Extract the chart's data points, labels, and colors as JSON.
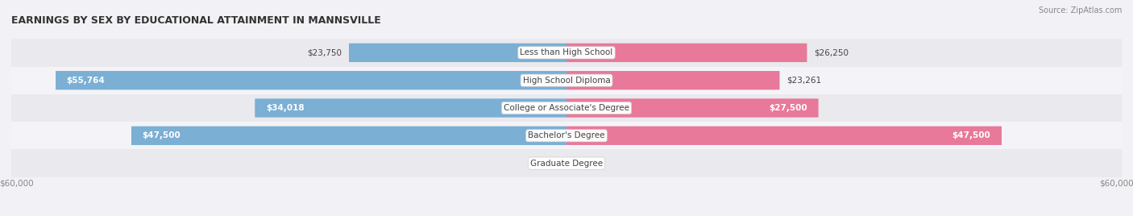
{
  "title": "EARNINGS BY SEX BY EDUCATIONAL ATTAINMENT IN MANNSVILLE",
  "source": "Source: ZipAtlas.com",
  "categories": [
    "Less than High School",
    "High School Diploma",
    "College or Associate's Degree",
    "Bachelor's Degree",
    "Graduate Degree"
  ],
  "male_values": [
    23750,
    55764,
    34018,
    47500,
    0
  ],
  "female_values": [
    26250,
    23261,
    27500,
    47500,
    0
  ],
  "max_val": 60000,
  "male_color": "#7BAFD4",
  "female_color": "#E8799A",
  "male_color_grad": "#A8C8E8",
  "female_color_grad": "#F0AABB",
  "row_bg_even": "#EAEAEE",
  "row_bg_odd": "#F4F4F8",
  "label_color": "#444444",
  "title_color": "#333333",
  "axis_label_color": "#888888",
  "legend_male_color": "#7BAFD4",
  "legend_female_color": "#E8799A"
}
